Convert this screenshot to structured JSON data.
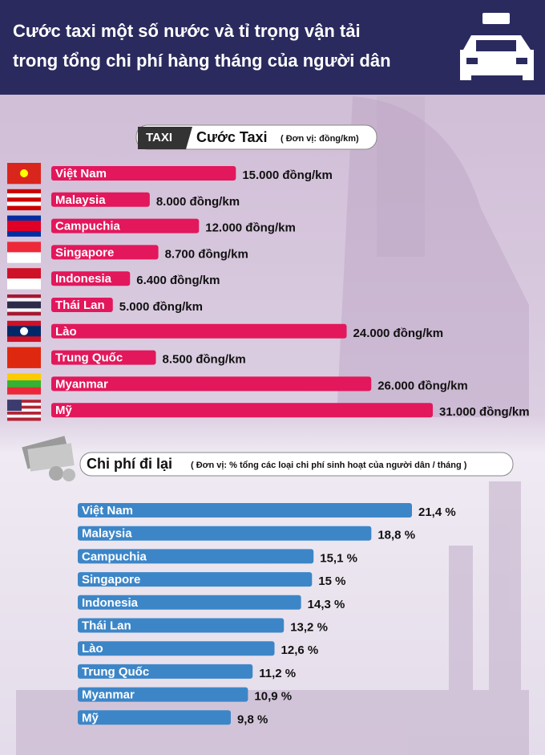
{
  "title": [
    "Cước taxi một số nước và tỉ trọng vận tải",
    "trong tổng chi phí hàng tháng của người dân"
  ],
  "chart_data": [
    {
      "type": "bar",
      "orientation": "horizontal",
      "badge": "TAXI",
      "title": "Cước Taxi",
      "subtitle": "( Đơn vị: đồng/km)",
      "categories": [
        "Việt Nam",
        "Malaysia",
        "Campuchia",
        "Singapore",
        "Indonesia",
        "Thái Lan",
        "Lào",
        "Trung Quốc",
        "Myanmar",
        "Mỹ"
      ],
      "values": [
        15000,
        8000,
        12000,
        8700,
        6400,
        5000,
        24000,
        8500,
        26000,
        31000
      ],
      "value_labels": [
        "15.000 đồng/km",
        "8.000 đồng/km",
        "12.000 đồng/km",
        "8.700 đồng/km",
        "6.400 đồng/km",
        "5.000 đồng/km",
        "24.000 đồng/km",
        "8.500 đồng/km",
        "26.000 đồng/km",
        "31.000 đồng/km"
      ],
      "color": "#e3175b"
    },
    {
      "type": "bar",
      "orientation": "horizontal",
      "title": "Chi phí đi lại",
      "subtitle": "( Đơn vị: % tổng các loại chi phí sinh hoạt của người dân / tháng )",
      "categories": [
        "Việt Nam",
        "Malaysia",
        "Campuchia",
        "Singapore",
        "Indonesia",
        "Thái Lan",
        "Lào",
        "Trung Quốc",
        "Myanmar",
        "Mỹ"
      ],
      "values": [
        21.4,
        18.8,
        15.1,
        15,
        14.3,
        13.2,
        12.6,
        11.2,
        10.9,
        9.8
      ],
      "value_labels": [
        "21,4 %",
        "18,8 %",
        "15,1 %",
        "15 %",
        "14,3 %",
        "13,2 %",
        "12,6 %",
        "11,2 %",
        "10,9 %",
        "9,8 %"
      ],
      "color": "#3c86c8"
    }
  ]
}
